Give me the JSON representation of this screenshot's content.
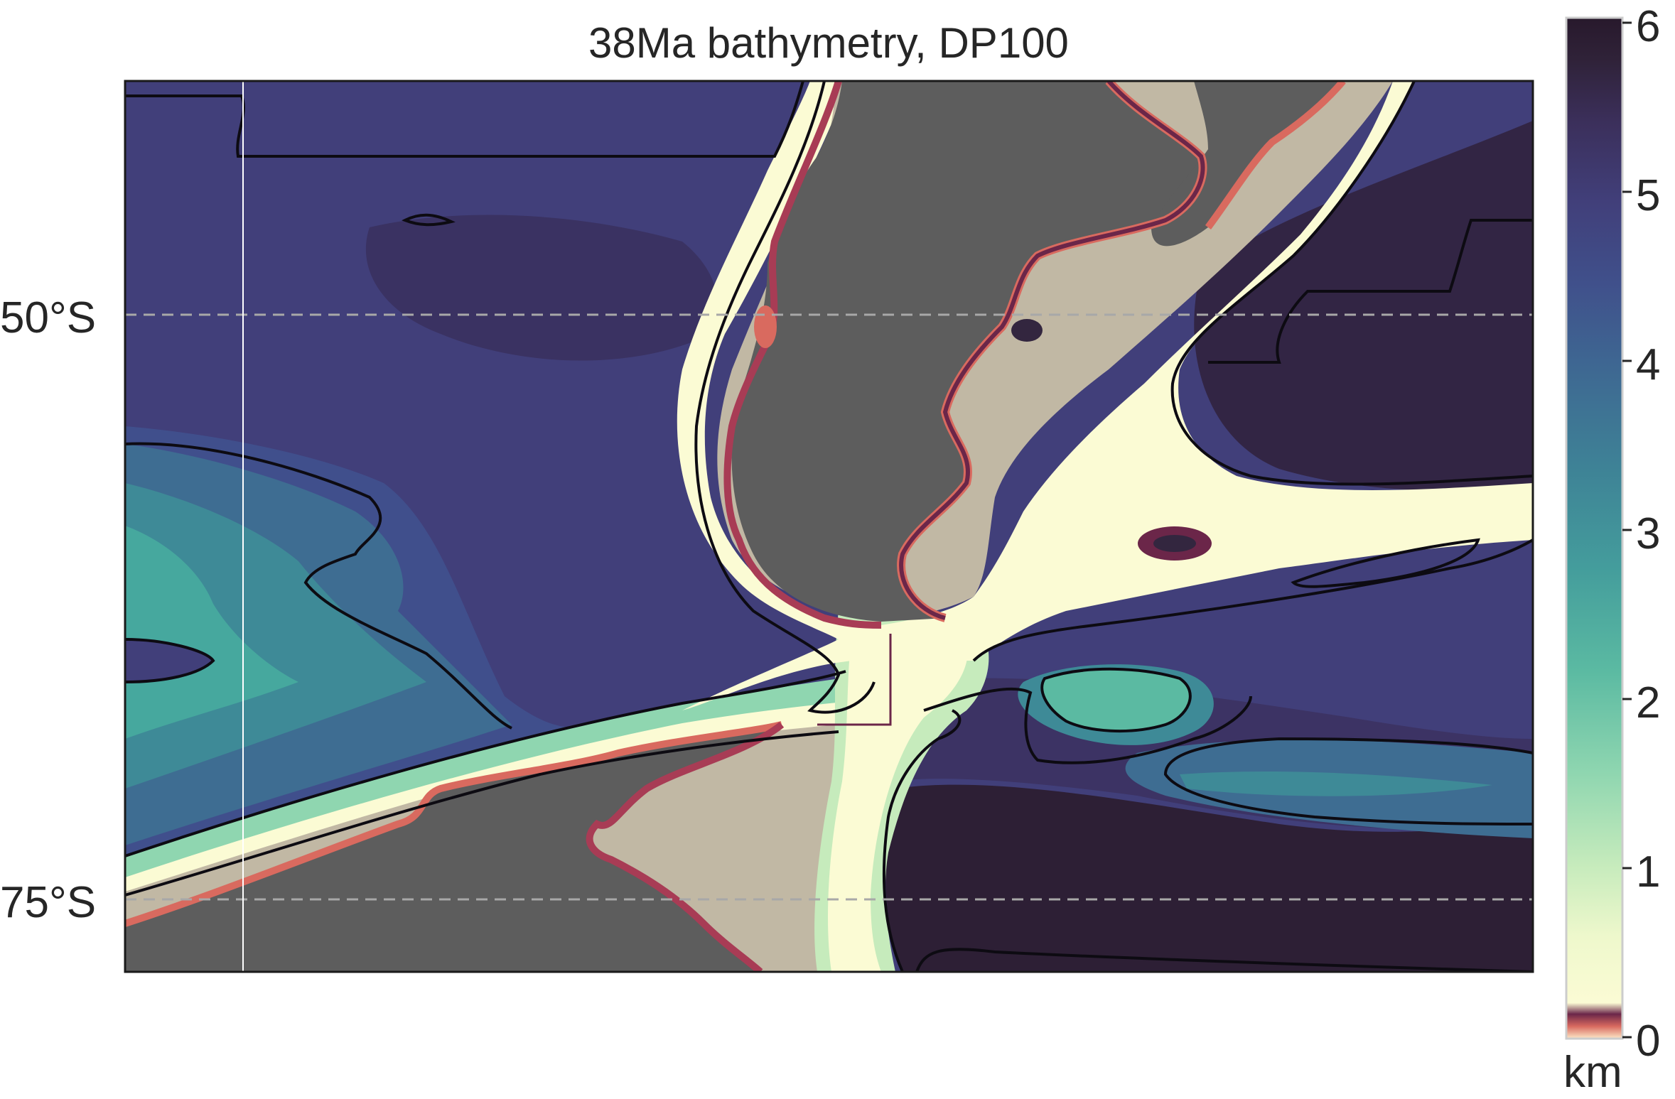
{
  "title": "38Ma bathymetry, DP100",
  "latitude_labels": [
    "50°S",
    "75°S"
  ],
  "colorbar": {
    "unit": "km",
    "ticks": [
      "0",
      "1",
      "2",
      "3",
      "4",
      "5",
      "6"
    ],
    "range": [
      0,
      6
    ],
    "colormap": [
      "#fde9c8",
      "#f2aa8a",
      "#d96a5f",
      "#a83c55",
      "#6b2649",
      "#fbfbd4",
      "#dcf2c4",
      "#a9e2b6",
      "#6cc9a8",
      "#46a89e",
      "#3e8a97",
      "#3e6d92",
      "#404f8c",
      "#413f7a",
      "#3e3463",
      "#33263f",
      "#2a1d30"
    ],
    "land_color": "#5d5d5d",
    "shelf_color": "#c1b8a4"
  },
  "map": {
    "gridline_color": "#a8a8a8",
    "contour_color": "#0d0b12"
  }
}
